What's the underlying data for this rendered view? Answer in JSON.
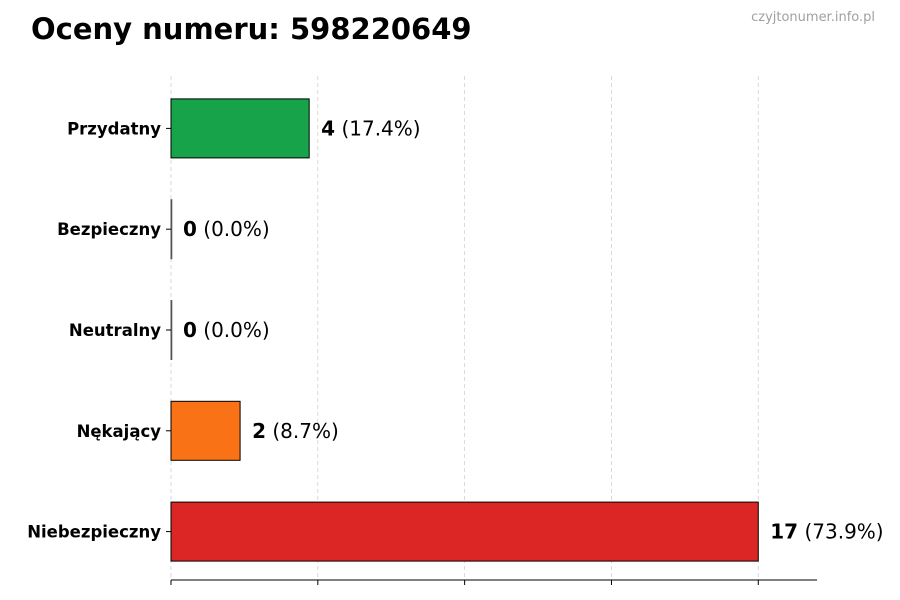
{
  "title": "Oceny numeru: 598220649",
  "watermark": "czyjtonumer.info.pl",
  "chart_data": {
    "type": "bar",
    "orientation": "horizontal",
    "title": "Oceny numeru: 598220649",
    "categories": [
      "Przydatny",
      "Bezpieczny",
      "Neutralny",
      "Nękający",
      "Niebezpieczny"
    ],
    "values": [
      4,
      0,
      0,
      2,
      17
    ],
    "percent_labels": [
      "(17.4%)",
      "(0.0%)",
      "(0.0%)",
      "(8.7%)",
      "(73.9%)"
    ],
    "colors": [
      "#16a34a",
      "#9ca3af",
      "#9ca3af",
      "#f97316",
      "#dc2626"
    ],
    "xlim": [
      0,
      18.7
    ],
    "xticks": [
      0,
      4.25,
      8.5,
      12.75,
      17
    ],
    "xtick_labels_shown": false,
    "grid": "vertical dashed",
    "xlabel": "",
    "ylabel": ""
  }
}
